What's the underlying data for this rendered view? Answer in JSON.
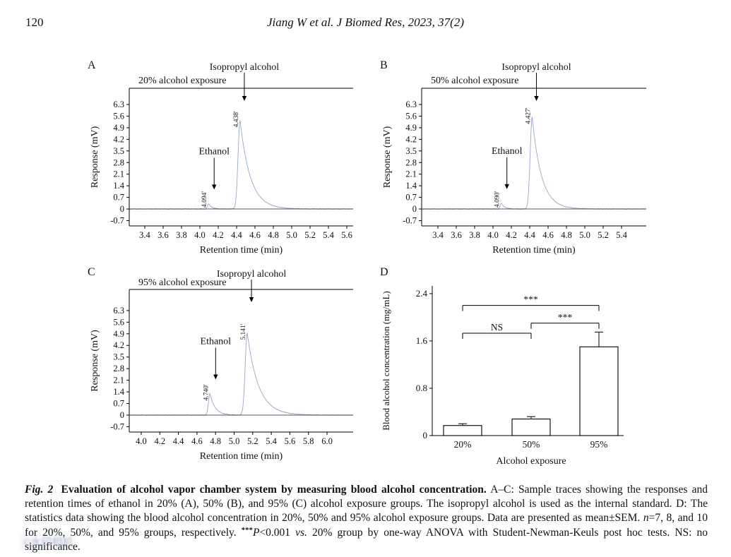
{
  "page": {
    "page_number": "120",
    "running_title": "Jiang W et al. J Biomed Res, 2023, 37(2)"
  },
  "watermark": {
    "text": "©水印相机"
  },
  "chart_data": [
    {
      "id": "A",
      "type": "line",
      "panel_label": "A",
      "title": "20% alcohol exposure",
      "xlabel": "Retention time (min)",
      "ylabel": "Response (mV)",
      "xlim": [
        3.231,
        5.669
      ],
      "ylim": [
        -1.02,
        7.28
      ],
      "xticks": [
        3.4,
        3.6,
        3.8,
        4.0,
        4.2,
        4.4,
        4.6,
        4.8,
        5.0,
        5.2,
        5.4,
        5.6
      ],
      "yticks": [
        -0.7,
        0,
        0.7,
        1.4,
        2.1,
        2.8,
        3.5,
        4.2,
        4.9,
        5.6,
        6.3
      ],
      "peaks": [
        {
          "name": "Ethanol",
          "rt": 4.094,
          "rt_label": "4.094'",
          "height_mV": 0.32,
          "rise": 0.012,
          "decay": 0.035
        },
        {
          "name": "Isopropyl alcohol",
          "rt": 4.438,
          "rt_label": "4.438'",
          "height_mV": 5.35,
          "rise": 0.022,
          "decay": 0.11
        }
      ],
      "annotations": [
        {
          "text": "Ethanol",
          "peak_index": 0,
          "position": "inside"
        },
        {
          "text": "Isopropyl alcohol",
          "peak_index": 1,
          "position": "above"
        }
      ]
    },
    {
      "id": "B",
      "type": "line",
      "panel_label": "B",
      "title": "50% alcohol exposure",
      "xlabel": "Retention time (min)",
      "ylabel": "Response (mV)",
      "xlim": [
        3.223,
        5.669
      ],
      "ylim": [
        -1.02,
        7.28
      ],
      "xticks": [
        3.4,
        3.6,
        3.8,
        4.0,
        4.2,
        4.4,
        4.6,
        4.8,
        5.0,
        5.2,
        5.4
      ],
      "yticks": [
        -0.7,
        0,
        0.7,
        1.4,
        2.1,
        2.8,
        3.5,
        4.2,
        4.9,
        5.6,
        6.3
      ],
      "peaks": [
        {
          "name": "Ethanol",
          "rt": 4.09,
          "rt_label": "4.090'",
          "height_mV": 0.35,
          "rise": 0.012,
          "decay": 0.035
        },
        {
          "name": "Isopropyl alcohol",
          "rt": 4.427,
          "rt_label": "4.427'",
          "height_mV": 5.55,
          "rise": 0.022,
          "decay": 0.1
        }
      ],
      "annotations": [
        {
          "text": "Ethanol",
          "peak_index": 0,
          "position": "inside"
        },
        {
          "text": "Isopropyl alcohol",
          "peak_index": 1,
          "position": "above"
        }
      ]
    },
    {
      "id": "C",
      "type": "line",
      "panel_label": "C",
      "title": "95% alcohol exposure",
      "xlabel": "Retention time (min)",
      "ylabel": "Response (mV)",
      "xlim": [
        3.871,
        6.281
      ],
      "ylim": [
        -1.02,
        7.57
      ],
      "xticks": [
        4.0,
        4.2,
        4.4,
        4.6,
        4.8,
        5.0,
        5.2,
        5.4,
        5.6,
        5.8,
        6.0
      ],
      "yticks": [
        -0.7,
        0,
        0.7,
        1.4,
        2.1,
        2.8,
        3.5,
        4.2,
        4.9,
        5.6,
        6.3
      ],
      "peaks": [
        {
          "name": "Ethanol",
          "rt": 4.74,
          "rt_label": "4.740'",
          "height_mV": 1.3,
          "rise": 0.016,
          "decay": 0.055
        },
        {
          "name": "Isopropyl alcohol",
          "rt": 5.141,
          "rt_label": "5.141'",
          "height_mV": 4.95,
          "rise": 0.022,
          "decay": 0.12
        }
      ],
      "annotations": [
        {
          "text": "Ethanol",
          "peak_index": 0,
          "position": "inside"
        },
        {
          "text": "Isopropyl alcohol",
          "peak_index": 1,
          "position": "above"
        }
      ]
    },
    {
      "id": "D",
      "type": "bar",
      "panel_label": "D",
      "xlabel": "Alcohol exposure",
      "ylabel": "Blood alcohol concentration (mg/mL)",
      "categories": [
        "20%",
        "50%",
        "95%"
      ],
      "values": [
        0.17,
        0.28,
        1.5
      ],
      "sem": [
        0.03,
        0.04,
        0.25
      ],
      "ylim": [
        0,
        2.53
      ],
      "yticks": [
        0,
        0.8,
        1.6,
        2.4
      ],
      "significance": [
        {
          "from": 0,
          "to": 1,
          "label": "NS",
          "y": 1.73
        },
        {
          "from": 1,
          "to": 2,
          "label": "***",
          "y": 1.9
        },
        {
          "from": 0,
          "to": 2,
          "label": "***",
          "y": 2.2
        }
      ]
    }
  ],
  "caption": {
    "segments": [
      {
        "text": "Fig. 2",
        "style": "bolditalic"
      },
      {
        "text": " Evaluation of alcohol vapor chamber system by measuring blood alcohol concentration.",
        "style": "bold"
      },
      {
        "text": " A–C: Sample traces showing the responses and retention times of ethanol in 20% (A), 50% (B), and 95% (C) alcohol exposure groups. The isopropyl alcohol is used as the internal standard. D: The statistics data showing the blood alcohol concentration in 20%, 50% and 95% alcohol exposure groups. Data are presented as mean±SEM. ",
        "style": "normal"
      },
      {
        "text": "n",
        "style": "italic"
      },
      {
        "text": "=7, 8, and 10 for 20%, 50%, and 95% groups, respectively. ",
        "style": "normal"
      },
      {
        "text": "***",
        "style": "supbold"
      },
      {
        "text": "P",
        "style": "italic"
      },
      {
        "text": "<0.001 ",
        "style": "normal"
      },
      {
        "text": "vs.",
        "style": "italic"
      },
      {
        "text": " 20% group by one-way ANOVA with Student-Newman-Keuls post hoc tests. NS: no significance.",
        "style": "normal"
      }
    ]
  }
}
